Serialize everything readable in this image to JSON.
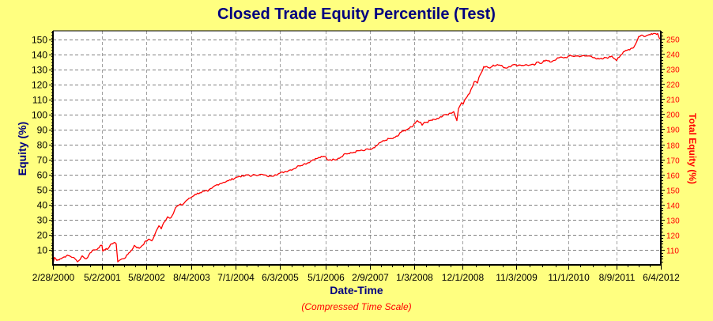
{
  "chart_data": {
    "type": "line",
    "title": "Closed Trade Equity Percentile (Test)",
    "xlabel": "Date-Time",
    "xlabel_note": "(Compressed Time Scale)",
    "ylabel": "Equity (%)",
    "ylabel_right": "Total Equity (%)",
    "ylim": [
      0,
      155
    ],
    "ylim_right": [
      100,
      255
    ],
    "yticks": [
      10,
      20,
      30,
      40,
      50,
      60,
      70,
      80,
      90,
      100,
      110,
      120,
      130,
      140,
      150
    ],
    "yticks_right": [
      110,
      120,
      130,
      140,
      150,
      160,
      170,
      180,
      190,
      200,
      210,
      220,
      230,
      240,
      250
    ],
    "xticks": [
      "2/28/2000",
      "5/2/2001",
      "5/8/2002",
      "8/4/2003",
      "7/1/2004",
      "6/3/2005",
      "5/1/2006",
      "2/9/2007",
      "1/3/2008",
      "12/1/2008",
      "11/3/2009",
      "11/1/2010",
      "8/9/2011",
      "6/4/2012"
    ],
    "grid": true,
    "legend": "none",
    "series": [
      {
        "name": "Equity (%)",
        "color": "#FF0000",
        "x": [
          "2/28/2000",
          "5/2/2001",
          "5/8/2002",
          "8/4/2003",
          "7/1/2004",
          "6/3/2005",
          "5/1/2006",
          "2/9/2007",
          "1/3/2008",
          "12/1/2008",
          "11/3/2009",
          "11/1/2010",
          "8/9/2011",
          "6/4/2012"
        ],
        "values": [
          1,
          8,
          14,
          41,
          55,
          60,
          72,
          77,
          95,
          98,
          133,
          139,
          138,
          154
        ]
      }
    ]
  }
}
